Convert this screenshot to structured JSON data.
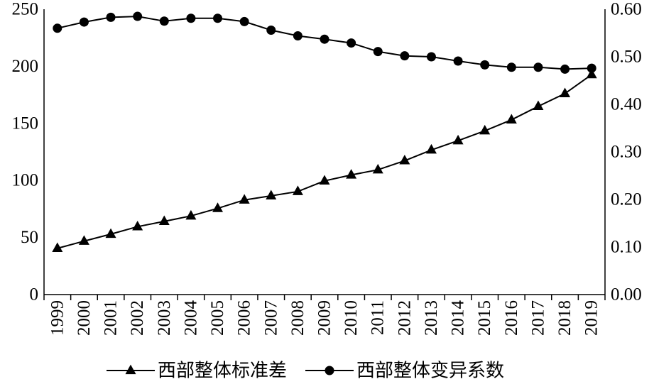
{
  "chart_data": {
    "type": "line",
    "x": [
      "1999",
      "2000",
      "2001",
      "2002",
      "2003",
      "2004",
      "2005",
      "2006",
      "2007",
      "2008",
      "2009",
      "2010",
      "2011",
      "2012",
      "2013",
      "2014",
      "2015",
      "2016",
      "2017",
      "2018",
      "2019"
    ],
    "y_left_ticks": [
      "0",
      "50",
      "100",
      "150",
      "200",
      "250"
    ],
    "y_right_ticks": [
      "0.00",
      "0.10",
      "0.20",
      "0.30",
      "0.40",
      "0.50",
      "0.60"
    ],
    "ylim_left": [
      0,
      250
    ],
    "ylim_right": [
      0,
      0.6
    ],
    "grid": false,
    "legend_position": "bottom",
    "series": [
      {
        "name": "西部整体标准差",
        "axis": "left",
        "marker": "triangle",
        "color": "#000000",
        "values": [
          40.5,
          46.8,
          52.9,
          59.5,
          64.1,
          68.9,
          75.5,
          82.9,
          86.5,
          90.3,
          99.6,
          104.8,
          109.3,
          117.3,
          126.7,
          134.8,
          143.5,
          153.1,
          164.9,
          176.1,
          192.7
        ]
      },
      {
        "name": "西部整体变异系数",
        "axis": "right",
        "marker": "circle",
        "color": "#000000",
        "values": [
          0.56,
          0.573,
          0.583,
          0.585,
          0.575,
          0.581,
          0.581,
          0.574,
          0.556,
          0.544,
          0.537,
          0.529,
          0.511,
          0.502,
          0.5,
          0.491,
          0.483,
          0.478,
          0.478,
          0.474,
          0.476
        ]
      }
    ]
  }
}
